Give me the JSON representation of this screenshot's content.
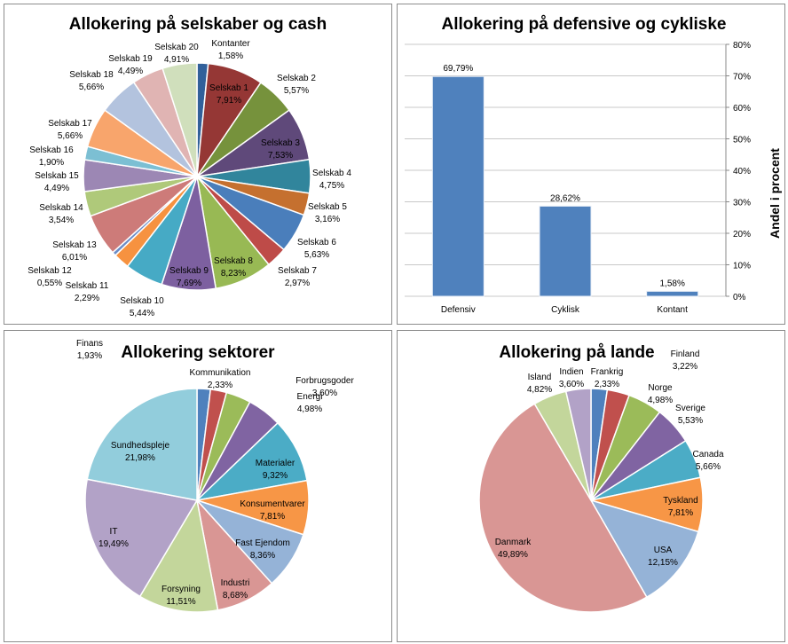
{
  "chart_data": [
    {
      "type": "pie",
      "title": "Allokering på selskaber og cash",
      "categories": [
        "Kontanter",
        "Selskab 1",
        "Selskab 2",
        "Selskab 3",
        "Selskab 4",
        "Selskab 5",
        "Selskab 6",
        "Selskab 7",
        "Selskab 8",
        "Selskab 9",
        "Selskab 10",
        "Selskab 11",
        "Selskab 12",
        "Selskab 13",
        "Selskab 14",
        "Selskab 15",
        "Selskab 16",
        "Selskab 17",
        "Selskab 18",
        "Selskab 19",
        "Selskab 20"
      ],
      "values": [
        1.58,
        7.91,
        5.57,
        7.53,
        4.75,
        3.16,
        5.63,
        2.97,
        8.23,
        7.69,
        5.44,
        2.29,
        0.55,
        6.01,
        3.54,
        4.49,
        1.9,
        5.66,
        5.66,
        4.49,
        4.91
      ],
      "value_labels": [
        "1,58%",
        "7,91%",
        "5,57%",
        "7,53%",
        "4,75%",
        "3,16%",
        "5,63%",
        "2,97%",
        "8,23%",
        "7,69%",
        "5,44%",
        "2,29%",
        "0,55%",
        "6,01%",
        "3,54%",
        "4,49%",
        "1,90%",
        "5,66%",
        "5,66%",
        "4,49%",
        "4,91%"
      ],
      "colors": [
        "#31609a",
        "#953735",
        "#76923c",
        "#5f497a",
        "#31859c",
        "#c5702f",
        "#4a7ebb",
        "#be4b48",
        "#98b954",
        "#7d60a0",
        "#46aac5",
        "#f69240",
        "#6b8cc7",
        "#cd7b79",
        "#afc97a",
        "#9c87b4",
        "#7cbfd3",
        "#f8a56c",
        "#b3c3de",
        "#e0b4b3",
        "#d0dfbc"
      ]
    },
    {
      "type": "bar",
      "title": "Allokering på defensive og cykliske",
      "categories": [
        "Defensiv",
        "Cyklisk",
        "Kontant"
      ],
      "values": [
        69.79,
        28.62,
        1.58
      ],
      "value_labels": [
        "69,79%",
        "28,62%",
        "1,58%"
      ],
      "ylabel": "Andel i procent",
      "ylim": [
        0,
        80
      ],
      "y_axis_side": "right",
      "yticks": [
        "0%",
        "10%",
        "20%",
        "30%",
        "40%",
        "50%",
        "60%",
        "70%",
        "80%"
      ],
      "grid": true,
      "color": "#4f81bd"
    },
    {
      "type": "pie",
      "title": "Allokering sektorer",
      "categories": [
        "Finans",
        "Kommunikation",
        "Forbrugsgoder",
        "Energi",
        "Materialer",
        "Konsumentvarer",
        "Fast Ejendom",
        "Industri",
        "Forsyning",
        "IT",
        "Sundhedspleje"
      ],
      "values": [
        1.93,
        2.33,
        3.6,
        4.98,
        9.32,
        7.81,
        8.36,
        8.68,
        11.51,
        19.49,
        21.98
      ],
      "value_labels": [
        "1,93%",
        "2,33%",
        "3,60%",
        "4,98%",
        "9,32%",
        "7,81%",
        "8,36%",
        "8,68%",
        "11,51%",
        "19,49%",
        "21,98%"
      ],
      "colors": [
        "#4f81bd",
        "#c0504d",
        "#9bbb59",
        "#8064a2",
        "#4bacc6",
        "#f79646",
        "#95b3d7",
        "#d99694",
        "#c3d69b",
        "#b2a2c7",
        "#92cddc"
      ]
    },
    {
      "type": "pie",
      "title": "Allokering på lande",
      "categories": [
        "Frankrig",
        "Finland",
        "Norge",
        "Sverige",
        "Canada",
        "Tyskland",
        "USA",
        "Danmark",
        "Island",
        "Indien"
      ],
      "values": [
        2.33,
        3.22,
        4.98,
        5.53,
        5.66,
        7.81,
        12.15,
        49.89,
        4.82,
        3.6
      ],
      "value_labels": [
        "2,33%",
        "3,22%",
        "4,98%",
        "5,53%",
        "5,66%",
        "7,81%",
        "12,15%",
        "49,89%",
        "4,82%",
        "3,60%"
      ],
      "colors": [
        "#4f81bd",
        "#c0504d",
        "#9bbb59",
        "#8064a2",
        "#4bacc6",
        "#f79646",
        "#95b3d7",
        "#d99694",
        "#c3d69b",
        "#b2a2c7"
      ]
    }
  ]
}
